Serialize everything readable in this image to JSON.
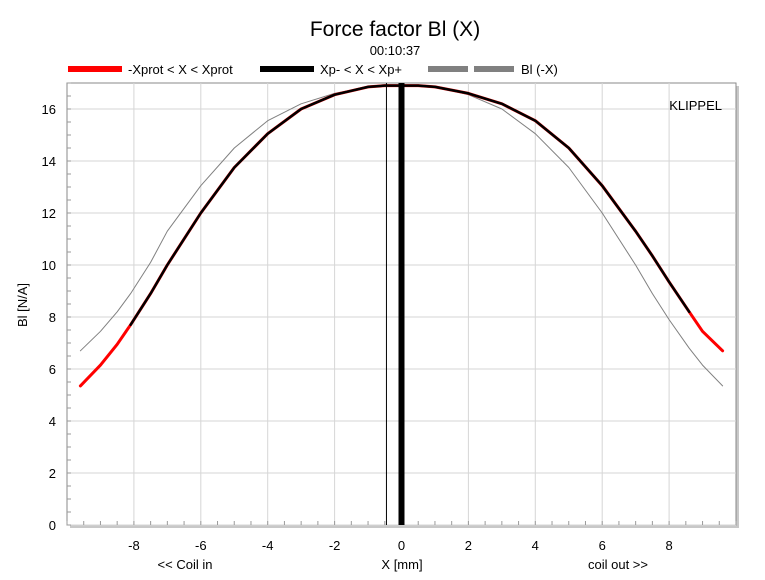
{
  "chart_data": {
    "type": "line",
    "title": "Force factor Bl (X)",
    "subtitle": "00:10:37",
    "xlabel": "X [mm]",
    "ylabel": "Bl [N/A]",
    "x_note_left": "<< Coil in",
    "x_note_right": "coil out >>",
    "brand": "KLIPPEL",
    "xlim": [
      -10.0,
      10.0
    ],
    "ylim": [
      0,
      17.0
    ],
    "xticks": [
      -8,
      -6,
      -4,
      -2,
      0,
      2,
      4,
      6,
      8
    ],
    "yticks": [
      0,
      2,
      4,
      6,
      8,
      10,
      12,
      14,
      16
    ],
    "grid": true,
    "legend_position": "top",
    "legend": [
      {
        "label": "-Xprot < X < Xprot",
        "color": "#ff0000",
        "style": "solid"
      },
      {
        "label": "Xp- < X < Xp+",
        "color": "#000000",
        "style": "solid"
      },
      {
        "label": "Bl (-X)",
        "color": "#808080",
        "style": "dashed"
      }
    ],
    "x": [
      -9.6,
      -9.0,
      -8.5,
      -8.1,
      -7.5,
      -7.0,
      -6.0,
      -5.0,
      -4.0,
      -3.0,
      -2.0,
      -1.0,
      -0.5,
      0.0,
      0.5,
      1.0,
      2.0,
      3.0,
      4.0,
      5.0,
      6.0,
      7.0,
      7.5,
      8.0,
      8.6,
      9.0,
      9.6
    ],
    "series": [
      {
        "name": "-Xprot < X < Xprot",
        "color": "#ff0000",
        "values": [
          5.35,
          6.15,
          6.95,
          7.7,
          8.9,
          10.0,
          12.0,
          13.75,
          15.05,
          16.0,
          16.55,
          16.85,
          16.9,
          16.9,
          16.9,
          16.85,
          16.6,
          16.2,
          15.55,
          14.5,
          13.05,
          11.3,
          10.35,
          9.35,
          8.2,
          7.45,
          6.7
        ]
      },
      {
        "name": "Xp- < X < Xp+",
        "color": "#000000",
        "x_range": [
          -8.1,
          8.6
        ],
        "values": [
          null,
          null,
          null,
          7.7,
          8.9,
          10.0,
          12.0,
          13.75,
          15.05,
          16.0,
          16.55,
          16.85,
          16.9,
          16.9,
          16.9,
          16.85,
          16.6,
          16.2,
          15.55,
          14.5,
          13.05,
          11.3,
          10.35,
          9.35,
          8.2,
          null,
          null
        ]
      },
      {
        "name": "Bl (-X)",
        "color": "#808080",
        "values": [
          6.7,
          7.45,
          8.2,
          8.9,
          10.1,
          11.3,
          13.05,
          14.5,
          15.55,
          16.2,
          16.6,
          16.85,
          16.9,
          16.9,
          16.9,
          16.85,
          16.55,
          16.0,
          15.05,
          13.75,
          12.0,
          10.0,
          8.9,
          7.9,
          6.8,
          6.15,
          5.35
        ]
      }
    ],
    "markers": [
      {
        "name": "rest-position",
        "x": -0.45,
        "color": "#000000",
        "weight": "thin"
      },
      {
        "name": "working-point",
        "x": 0.0,
        "color": "#000000",
        "weight": "bold"
      }
    ]
  }
}
